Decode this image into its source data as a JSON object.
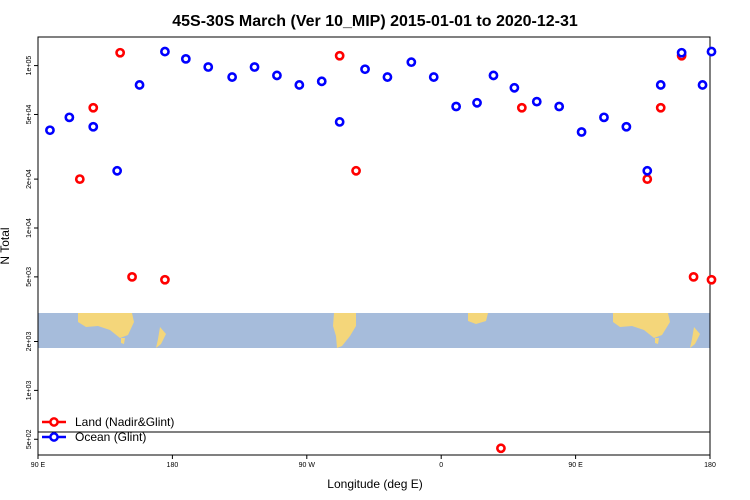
{
  "chart_data": {
    "type": "scatter",
    "title": "45S-30S March (Ver 10_MIP)   2015-01-01 to 2020-12-31",
    "xlabel": "Longitude (deg E)",
    "ylabel": "N Total",
    "xlim": [
      90,
      540
    ],
    "ylim": [
      400,
      150000
    ],
    "yscale": "log",
    "grid": false,
    "legend_position": "bottom-left",
    "xticks": [
      {
        "value": 90,
        "label": "90 E"
      },
      {
        "value": 180,
        "label": "180"
      },
      {
        "value": 270,
        "label": "90 W"
      },
      {
        "value": 360,
        "label": "0"
      },
      {
        "value": 450,
        "label": "90 E"
      },
      {
        "value": 540,
        "label": "180"
      }
    ],
    "yticks": [
      {
        "value": 500,
        "label": "5e+02"
      },
      {
        "value": 1000,
        "label": "1e+03"
      },
      {
        "value": 2000,
        "label": "2e+03"
      },
      {
        "value": 5000,
        "label": "5e+03"
      },
      {
        "value": 10000,
        "label": "1e+04"
      },
      {
        "value": 20000,
        "label": "2e+04"
      },
      {
        "value": 50000,
        "label": "5e+04"
      },
      {
        "value": 100000,
        "label": "1e+05"
      }
    ],
    "series": [
      {
        "name": "Land (Nadir&Glint)",
        "color": "#ff0000",
        "x": [
          118,
          127,
          145,
          153,
          175,
          292,
          303,
          414,
          498,
          507,
          521,
          529,
          541
        ],
        "y": [
          20000,
          55000,
          120000,
          5000,
          4800,
          115000,
          22500,
          55000,
          20000,
          55000,
          115000,
          5000,
          4800
        ]
      },
      {
        "name": "Ocean (Glint)",
        "color": "#0000ff",
        "x": [
          98,
          111,
          127,
          143,
          158,
          175,
          189,
          204,
          220,
          235,
          250,
          265,
          280,
          292,
          309,
          324,
          340,
          355,
          370,
          384,
          395,
          409,
          424,
          439,
          454,
          469,
          484,
          498,
          507,
          521,
          535,
          541
        ],
        "y": [
          40000,
          48000,
          42000,
          22500,
          76000,
          122000,
          110000,
          98000,
          85000,
          98000,
          87000,
          76000,
          80000,
          45000,
          95000,
          85000,
          105000,
          85000,
          56000,
          59000,
          87000,
          73000,
          60000,
          56000,
          39000,
          48000,
          42000,
          22500,
          76000,
          120000,
          76000,
          122000
        ]
      }
    ],
    "extra_points": [
      {
        "series": "Land (Nadir&Glint)",
        "x": 400,
        "y": 440
      }
    ]
  },
  "colors": {
    "ocean": "#a6bcdb",
    "land": "#f4d67a",
    "land_marker": "#ff0000",
    "ocean_marker": "#0000ff"
  }
}
